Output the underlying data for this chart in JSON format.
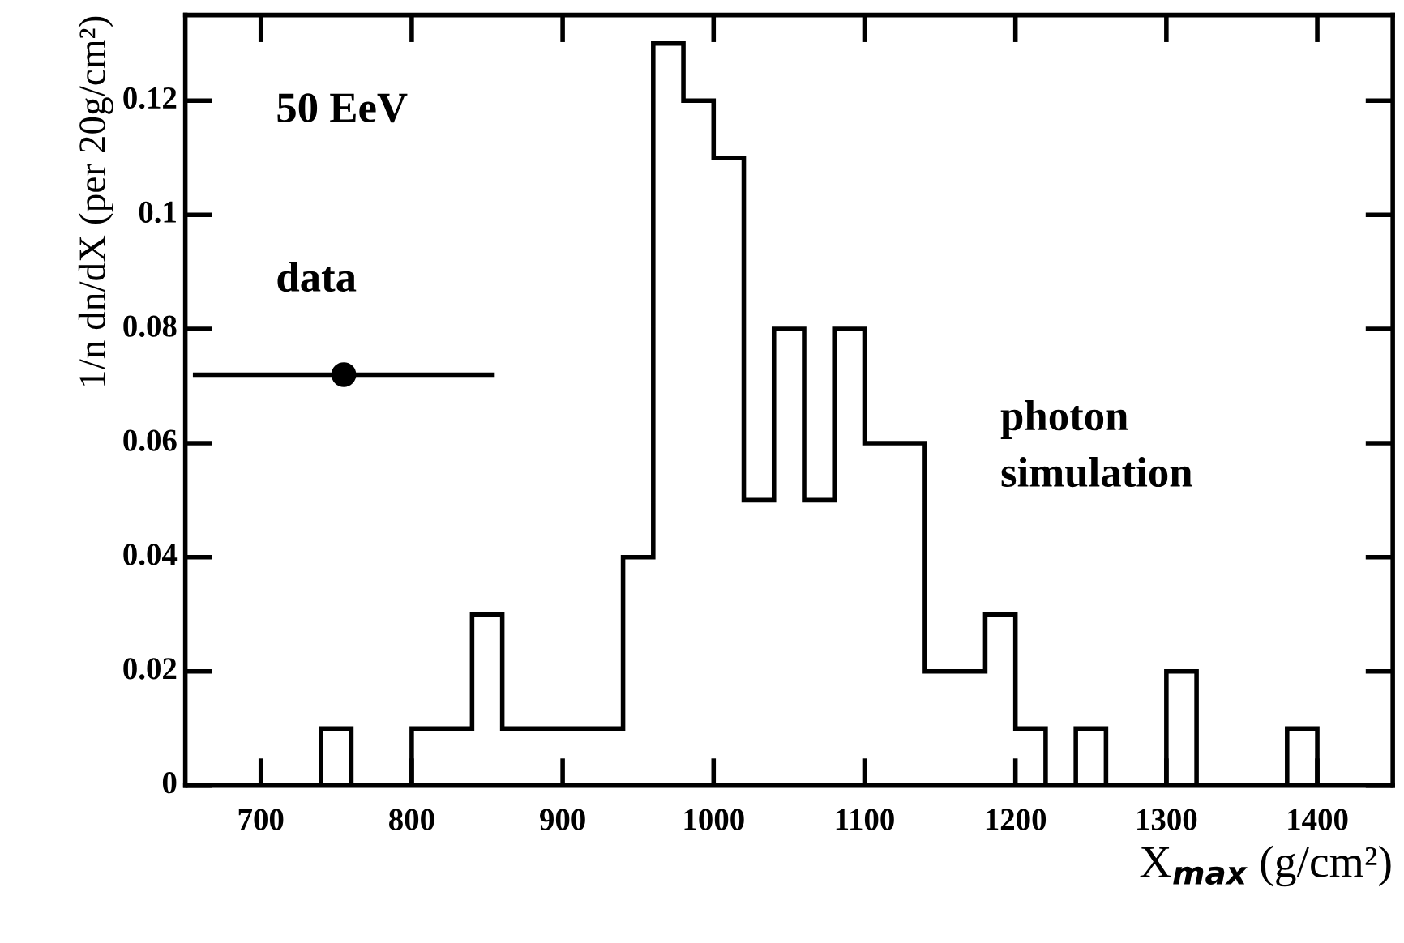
{
  "chart_data": {
    "type": "histogram",
    "xlabel": "X$_{max}$ (g/cm²)",
    "ylabel": "1/n dn/dX (per 20g/cm²)",
    "bins": [
      740,
      760,
      780,
      800,
      820,
      840,
      860,
      880,
      900,
      920,
      940,
      960,
      980,
      1000,
      1020,
      1040,
      1060,
      1080,
      1100,
      1120,
      1140,
      1160,
      1180,
      1200,
      1220,
      1240,
      1260,
      1280,
      1300,
      1320,
      1340,
      1360,
      1380,
      1400
    ],
    "values": [
      0.01,
      0,
      0,
      0.01,
      0.01,
      0.03,
      0.01,
      0.01,
      0.01,
      0.01,
      0.04,
      0.13,
      0.12,
      0.11,
      0.05,
      0.08,
      0.05,
      0.08,
      0.06,
      0.06,
      0.02,
      0.02,
      0.03,
      0.01,
      0,
      0.01,
      0,
      0,
      0.02,
      0,
      0,
      0,
      0.01
    ],
    "color": "#000000",
    "series": [
      {
        "type": "scatter",
        "x": [
          755
        ],
        "values": [
          0.072
        ],
        "xerrors": [
          100
        ],
        "color": "#000000",
        "marker": "circle"
      }
    ],
    "annotations": [
      "50 EeV",
      "data",
      "photon\nsimulation"
    ],
    "xlim": [
      650,
      1450
    ],
    "xticks": [
      700,
      800,
      900,
      1000,
      1100,
      1200,
      1300,
      1400
    ],
    "ylim": [
      0,
      0.135
    ],
    "yticks": [
      0,
      0.02,
      0.04,
      0.06,
      0.08,
      0.1,
      0.12
    ],
    "grid": false,
    "legend": false
  }
}
